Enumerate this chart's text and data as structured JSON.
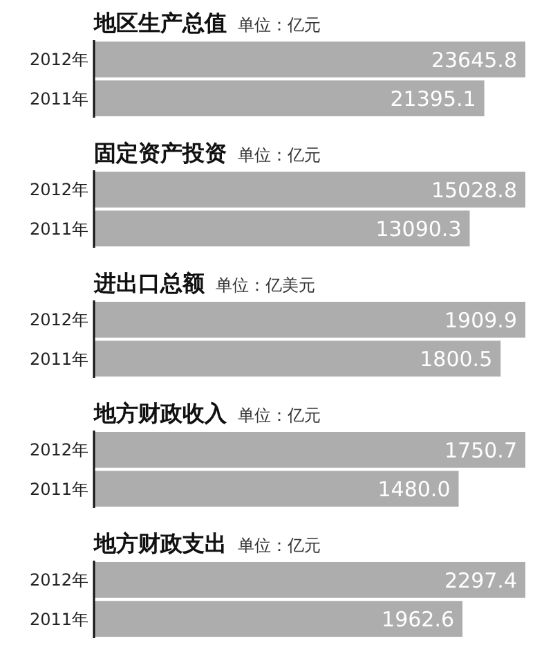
{
  "chart_data": [
    {
      "type": "bar",
      "orientation": "horizontal",
      "title": "地区生产总值",
      "subtitle": "单位：亿元",
      "categories": [
        "2012年",
        "2011年"
      ],
      "values": [
        23645.8,
        21395.1
      ],
      "color": "#adadad",
      "value_labels": [
        "23645.8",
        "21395.1"
      ]
    },
    {
      "type": "bar",
      "orientation": "horizontal",
      "title": "固定资产投资",
      "subtitle": "单位：亿元",
      "categories": [
        "2012年",
        "2011年"
      ],
      "values": [
        15028.8,
        13090.3
      ],
      "color": "#adadad",
      "value_labels": [
        "15028.8",
        "13090.3"
      ]
    },
    {
      "type": "bar",
      "orientation": "horizontal",
      "title": "进出口总额",
      "subtitle": "单位：亿美元",
      "categories": [
        "2012年",
        "2011年"
      ],
      "values": [
        1909.9,
        1800.5
      ],
      "color": "#adadad",
      "value_labels": [
        "1909.9",
        "1800.5"
      ]
    },
    {
      "type": "bar",
      "orientation": "horizontal",
      "title": "地方财政收入",
      "subtitle": "单位：亿元",
      "categories": [
        "2012年",
        "2011年"
      ],
      "values": [
        1750.7,
        1480.0
      ],
      "color": "#adadad",
      "value_labels": [
        "1750.7",
        "1480.0"
      ]
    },
    {
      "type": "bar",
      "orientation": "horizontal",
      "title": "地方财政支出",
      "subtitle": "单位：亿元",
      "categories": [
        "2012年",
        "2011年"
      ],
      "values": [
        2297.4,
        1962.6
      ],
      "color": "#adadad",
      "value_labels": [
        "2297.4",
        "1962.6"
      ]
    }
  ]
}
